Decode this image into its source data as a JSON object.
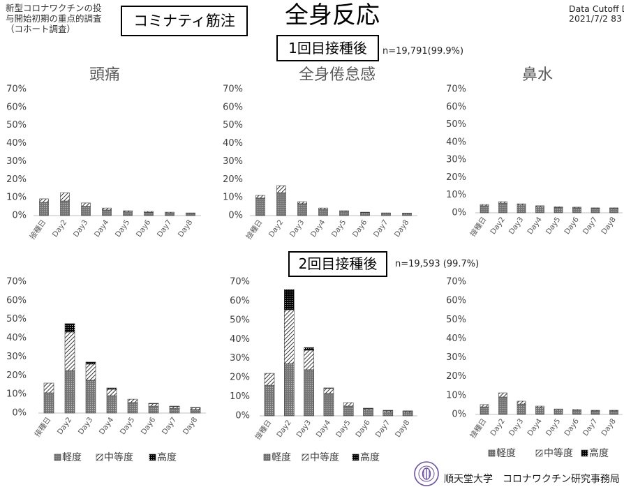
{
  "header": {
    "study_lines": [
      "新型コロナワクチンの投",
      "与開始初期の重点的調査",
      "（コホート調査）"
    ],
    "product": "コミナティ筋注",
    "title": "全身反応",
    "cutoff_label": "Data Cutoff D",
    "cutoff_date": "2021/7/2 83"
  },
  "dose1": {
    "label": "1回目接種後",
    "n": "n=19,791(99.9%)"
  },
  "dose2": {
    "label": "2回目接種後",
    "n": "n=19,593 (99.7%)"
  },
  "footer": {
    "org": "順天堂大学　コロナワクチン研究事務局",
    "logo_icon": "university-seal-icon"
  },
  "colors": {
    "mild": "#7d7d7d",
    "moderate": "#000000",
    "severe": "#000000",
    "chart_title": "#595959",
    "logo": "#6b4fa0"
  },
  "chart_data": [
    {
      "type": "bar",
      "stacked": true,
      "title": "頭痛",
      "categories": [
        "接種日",
        "Day2",
        "Day3",
        "Day4",
        "Day5",
        "Day6",
        "Day7",
        "Day8"
      ],
      "series": [
        {
          "name": "軽度",
          "values": [
            7.3,
            8.1,
            5.2,
            3.1,
            2.1,
            1.8,
            1.5,
            1.2
          ]
        },
        {
          "name": "中等度",
          "values": [
            2.0,
            4.6,
            1.8,
            1.1,
            0.6,
            0.5,
            0.4,
            0.3
          ]
        },
        {
          "name": "高度",
          "values": [
            0,
            0,
            0,
            0,
            0,
            0,
            0,
            0
          ]
        }
      ],
      "ylim": [
        0,
        70
      ],
      "yticks": [
        "0%",
        "10%",
        "20%",
        "30%",
        "40%",
        "50%",
        "60%",
        "70%"
      ],
      "grid": false,
      "legend": "none"
    },
    {
      "type": "bar",
      "stacked": true,
      "title": "全身倦怠感",
      "categories": [
        "接種日",
        "Day2",
        "Day3",
        "Day4",
        "Day5",
        "Day6",
        "Day7",
        "Day8"
      ],
      "series": [
        {
          "name": "軽度",
          "values": [
            9.7,
            12.7,
            6.6,
            3.5,
            2.3,
            1.7,
            1.3,
            1.2
          ]
        },
        {
          "name": "中等度",
          "values": [
            1.5,
            3.9,
            1.1,
            0.7,
            0.4,
            0.2,
            0.2,
            0.2
          ]
        },
        {
          "name": "高度",
          "values": [
            0,
            0,
            0,
            0,
            0,
            0,
            0,
            0
          ]
        }
      ],
      "ylim": [
        0,
        70
      ],
      "yticks": [
        "0%",
        "10%",
        "20%",
        "30%",
        "40%",
        "50%",
        "60%",
        "70%"
      ],
      "grid": false,
      "legend": "none"
    },
    {
      "type": "bar",
      "stacked": true,
      "title": "鼻水",
      "categories": [
        "接種日",
        "Day2",
        "Day3",
        "Day4",
        "Day5",
        "Day6",
        "Day7",
        "Day8"
      ],
      "series": [
        {
          "name": "軽度",
          "values": [
            4.0,
            5.5,
            4.5,
            3.5,
            3.0,
            2.8,
            2.5,
            2.5
          ]
        },
        {
          "name": "中等度",
          "values": [
            0.7,
            0.8,
            0.6,
            0.5,
            0.4,
            0.4,
            0.3,
            0.3
          ]
        },
        {
          "name": "高度",
          "values": [
            0,
            0,
            0,
            0,
            0,
            0,
            0,
            0
          ]
        }
      ],
      "ylim": [
        0,
        70
      ],
      "yticks": [
        "0%",
        "10%",
        "20%",
        "30%",
        "40%",
        "50%",
        "60%",
        "70%"
      ],
      "grid": false,
      "legend": "none"
    },
    {
      "type": "bar",
      "stacked": true,
      "categories": [
        "接種日",
        "Day2",
        "Day3",
        "Day4",
        "Day5",
        "Day6",
        "Day7",
        "Day8"
      ],
      "series": [
        {
          "name": "軽度",
          "values": [
            10.8,
            22.7,
            17.5,
            9.3,
            5.6,
            3.7,
            2.6,
            1.9
          ]
        },
        {
          "name": "中等度",
          "values": [
            5.2,
            20.5,
            8.6,
            3.4,
            1.8,
            1.3,
            0.9,
            0.9
          ]
        },
        {
          "name": "高度",
          "values": [
            0,
            4.5,
            1.1,
            0.7,
            0,
            0.2,
            0.2,
            0.2
          ]
        }
      ],
      "ylim": [
        0,
        70
      ],
      "yticks": [
        "0%",
        "10%",
        "20%",
        "30%",
        "40%",
        "50%",
        "60%",
        "70%"
      ],
      "grid": false,
      "legend": "bottom"
    },
    {
      "type": "bar",
      "stacked": true,
      "categories": [
        "接種日",
        "Day2",
        "Day3",
        "Day4",
        "Day5",
        "Day6",
        "Day7",
        "Day8"
      ],
      "series": [
        {
          "name": "軽度",
          "values": [
            16.0,
            27.3,
            24.1,
            11.7,
            5.1,
            3.3,
            2.2,
            1.9
          ]
        },
        {
          "name": "中等度",
          "values": [
            6.2,
            28.1,
            10.2,
            2.6,
            1.8,
            0.5,
            0.5,
            0.5
          ]
        },
        {
          "name": "高度",
          "values": [
            0,
            10.6,
            1.4,
            0.3,
            0,
            0.2,
            0.2,
            0.2
          ]
        }
      ],
      "ylim": [
        0,
        70
      ],
      "yticks": [
        "0%",
        "10%",
        "20%",
        "30%",
        "40%",
        "50%",
        "60%",
        "70%"
      ],
      "grid": false,
      "legend": "bottom"
    },
    {
      "type": "bar",
      "stacked": true,
      "categories": [
        "接種日",
        "Day2",
        "Day3",
        "Day4",
        "Day5",
        "Day6",
        "Day7",
        "Day8"
      ],
      "series": [
        {
          "name": "軽度",
          "values": [
            4.0,
            9.2,
            5.5,
            3.7,
            2.5,
            2.2,
            1.9,
            1.9
          ]
        },
        {
          "name": "中等度",
          "values": [
            1.2,
            2.2,
            1.5,
            0.7,
            0.4,
            0.4,
            0.3,
            0.3
          ]
        },
        {
          "name": "高度",
          "values": [
            0,
            0,
            0,
            0,
            0,
            0,
            0,
            0
          ]
        }
      ],
      "ylim": [
        0,
        70
      ],
      "yticks": [
        "0%",
        "10%",
        "20%",
        "30%",
        "40%",
        "50%",
        "60%",
        "70%"
      ],
      "grid": false,
      "legend": "bottom"
    }
  ]
}
